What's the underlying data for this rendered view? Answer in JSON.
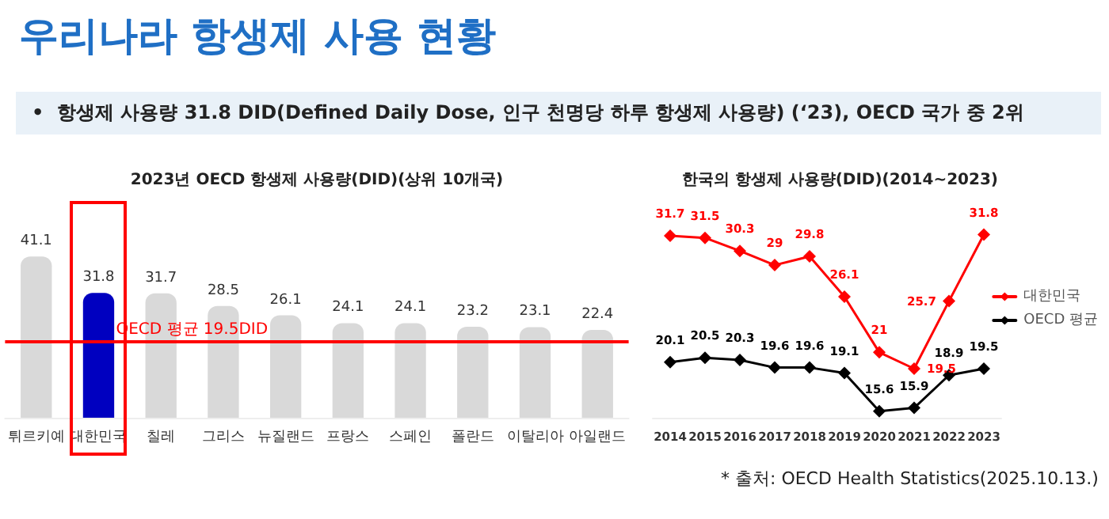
{
  "chart_data": [
    {
      "type": "bar",
      "title": "2023년 OECD 항생제 사용량(DID)(상위 10개국)",
      "categories": [
        "튀르키예",
        "대한민국",
        "칠레",
        "그리스",
        "뉴질랜드",
        "프랑스",
        "스페인",
        "폴란드",
        "이탈리아",
        "아일랜드"
      ],
      "values": [
        41.1,
        31.8,
        31.7,
        28.5,
        26.1,
        24.1,
        24.1,
        23.2,
        23.1,
        22.4
      ],
      "colors": [
        "#d9d9d9",
        "#0000c0",
        "#d9d9d9",
        "#d9d9d9",
        "#d9d9d9",
        "#d9d9d9",
        "#d9d9d9",
        "#d9d9d9",
        "#d9d9d9",
        "#d9d9d9"
      ],
      "data_labels": true,
      "grid": false,
      "legend": false,
      "ref_lines": [
        {
          "axis": "y",
          "value": 19.5,
          "label": "OECD 평균 19.5DID",
          "color": "#ff0000"
        }
      ],
      "annotations": [
        "우리나라 항생제 사용 현황",
        "•  항생제 사용량 31.8 DID(Defined Daily Dose, 인구 천명당 하루 항생제 사용량) (‘23), OECD 국가 중 2위"
      ]
    },
    {
      "type": "line",
      "title": "한국의 항생제 사용량(DID)(2014~2023)",
      "categories": [
        "2014",
        "2015",
        "2016",
        "2017",
        "2018",
        "2019",
        "2020",
        "2021",
        "2022",
        "2023"
      ],
      "series": [
        {
          "name": "대한민국",
          "color": "#ff0000",
          "values": [
            31.7,
            31.5,
            30.3,
            29.0,
            29.8,
            26.1,
            21.0,
            19.5,
            25.7,
            31.8
          ]
        },
        {
          "name": "OECD 평균",
          "color": "#000000",
          "values": [
            20.1,
            20.5,
            20.3,
            19.6,
            19.6,
            19.1,
            15.6,
            15.9,
            18.9,
            19.5
          ]
        }
      ],
      "data_labels": true,
      "grid": false,
      "legend": "right",
      "marker": "diamond",
      "line_style": "solid",
      "annotations": [
        "* 출처: OECD Health Statistics(2025.10.13.)"
      ]
    }
  ]
}
